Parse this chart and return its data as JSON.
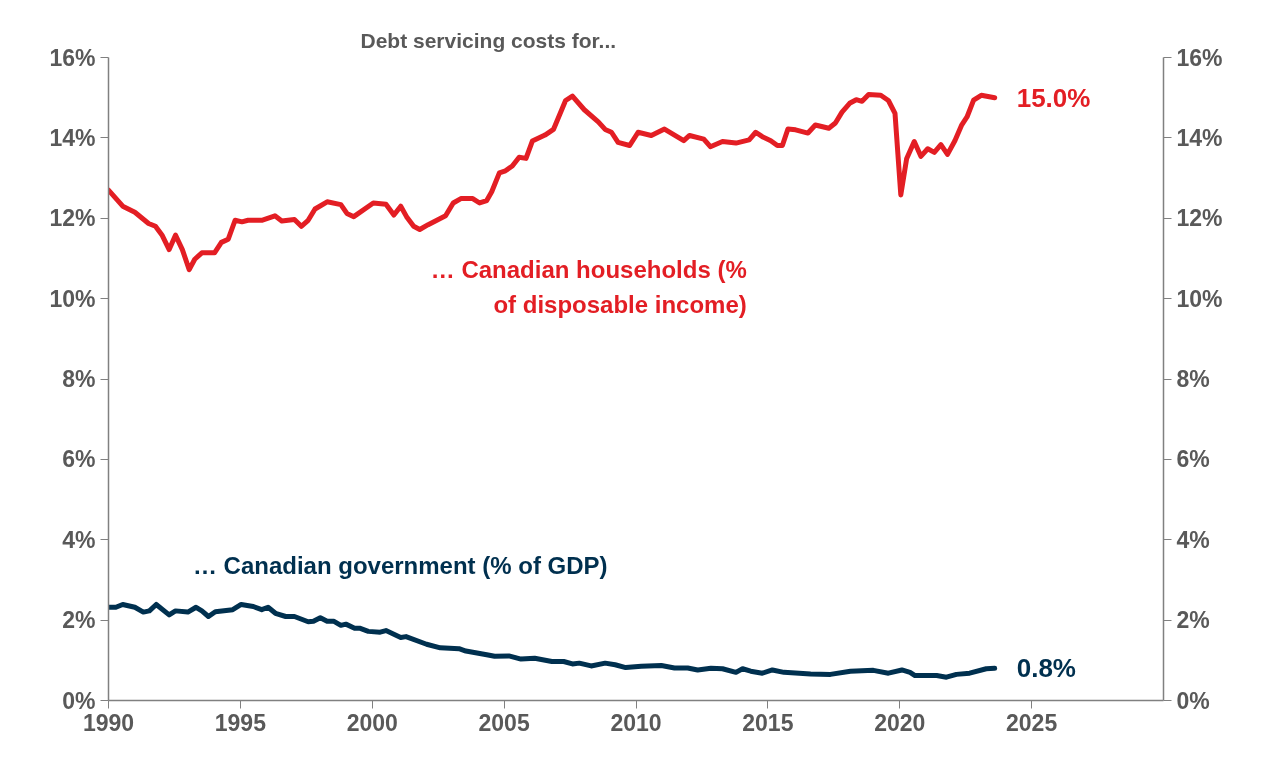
{
  "chart_data": {
    "type": "line",
    "title": "Debt servicing costs for...",
    "xlim": [
      1990,
      2030
    ],
    "xticks": [
      1990,
      1995,
      2000,
      2005,
      2010,
      2015,
      2020,
      2025
    ],
    "ylim": [
      0,
      16
    ],
    "yticks": [
      {
        "value": 0,
        "label": "0%"
      },
      {
        "value": 2,
        "label": "2%"
      },
      {
        "value": 4,
        "label": "4%"
      },
      {
        "value": 6,
        "label": "6%"
      },
      {
        "value": 8,
        "label": "8%"
      },
      {
        "value": 10,
        "label": "10%"
      },
      {
        "value": 12,
        "label": "12%"
      },
      {
        "value": 14,
        "label": "14%"
      },
      {
        "value": 16,
        "label": "16%"
      }
    ],
    "y2lim": [
      0,
      16
    ],
    "y2ticks": [
      {
        "value": 0,
        "label": "0%"
      },
      {
        "value": 2,
        "label": "2%"
      },
      {
        "value": 4,
        "label": "4%"
      },
      {
        "value": 6,
        "label": "6%"
      },
      {
        "value": 8,
        "label": "8%"
      },
      {
        "value": 10,
        "label": "10%"
      },
      {
        "value": 12,
        "label": "12%"
      },
      {
        "value": 14,
        "label": "14%"
      },
      {
        "value": 16,
        "label": "16%"
      }
    ],
    "grid": false,
    "marker": "none",
    "line_style": "solid",
    "series": [
      {
        "name": "… Canadian households (%\nof disposable income)",
        "color": "#e31e24",
        "x": [
          1990.0,
          1990.54,
          1991.0,
          1991.52,
          1991.78,
          1992.04,
          1992.3,
          1992.54,
          1992.8,
          1993.06,
          1993.27,
          1993.54,
          1994.02,
          1994.28,
          1994.54,
          1994.8,
          1995.06,
          1995.29,
          1995.81,
          1996.31,
          1996.57,
          1997.05,
          1997.31,
          1997.57,
          1997.83,
          1998.29,
          1998.81,
          1999.04,
          1999.3,
          2000.04,
          2000.52,
          2000.82,
          2001.08,
          2001.3,
          2001.57,
          2001.8,
          2002.12,
          2002.78,
          2003.07,
          2003.36,
          2003.81,
          2004.07,
          2004.34,
          2004.53,
          2004.82,
          2005.05,
          2005.31,
          2005.57,
          2005.83,
          2006.07,
          2006.55,
          2006.87,
          2007.33,
          2007.59,
          2008.04,
          2008.57,
          2008.83,
          2009.07,
          2009.32,
          2009.76,
          2010.08,
          2010.58,
          2011.08,
          2011.81,
          2012.03,
          2012.57,
          2012.82,
          2013.28,
          2013.79,
          2014.29,
          2014.54,
          2014.79,
          2015.11,
          2015.36,
          2015.55,
          2015.76,
          2016.05,
          2016.52,
          2016.8,
          2017.31,
          2017.56,
          2017.81,
          2018.1,
          2018.35,
          2018.57,
          2018.82,
          2019.28,
          2019.57,
          2019.82,
          2020.04,
          2020.26,
          2020.55,
          2020.8,
          2021.06,
          2021.31,
          2021.56,
          2021.81,
          2022.09,
          2022.34,
          2022.55,
          2022.8,
          2023.09,
          2023.6
        ],
        "values": [
          12.7,
          12.3,
          12.15,
          11.87,
          11.8,
          11.57,
          11.22,
          11.58,
          11.22,
          10.72,
          10.98,
          11.14,
          11.14,
          11.4,
          11.48,
          11.95,
          11.91,
          11.95,
          11.95,
          12.06,
          11.93,
          11.97,
          11.8,
          11.95,
          12.23,
          12.41,
          12.34,
          12.12,
          12.04,
          12.38,
          12.35,
          12.08,
          12.3,
          12.04,
          11.8,
          11.72,
          11.84,
          12.06,
          12.38,
          12.49,
          12.49,
          12.38,
          12.44,
          12.66,
          13.13,
          13.18,
          13.3,
          13.52,
          13.49,
          13.92,
          14.07,
          14.21,
          14.93,
          15.04,
          14.7,
          14.4,
          14.21,
          14.14,
          13.89,
          13.81,
          14.14,
          14.06,
          14.22,
          13.93,
          14.06,
          13.97,
          13.78,
          13.91,
          13.87,
          13.95,
          14.14,
          14.03,
          13.93,
          13.81,
          13.81,
          14.22,
          14.2,
          14.12,
          14.32,
          14.24,
          14.37,
          14.64,
          14.86,
          14.95,
          14.91,
          15.08,
          15.06,
          14.93,
          14.61,
          12.58,
          13.48,
          13.91,
          13.54,
          13.73,
          13.64,
          13.83,
          13.59,
          13.93,
          14.31,
          14.52,
          14.94,
          15.06,
          15.0
        ]
      },
      {
        "name": "… Canadian government (% of GDP)",
        "color": "#00304f",
        "x": [
          1990.0,
          1990.28,
          1990.54,
          1991.0,
          1991.32,
          1991.55,
          1991.81,
          1992.3,
          1992.54,
          1993.01,
          1993.32,
          1993.54,
          1993.79,
          1994.05,
          1994.71,
          1995.03,
          1995.49,
          1995.81,
          1996.05,
          1996.33,
          1996.72,
          1997.05,
          1997.57,
          1997.77,
          1998.03,
          1998.29,
          1998.55,
          1998.81,
          1999.0,
          1999.33,
          1999.52,
          1999.85,
          2000.3,
          2000.52,
          2001.08,
          2001.28,
          2002.06,
          2002.58,
          2003.29,
          2003.55,
          2004.34,
          2004.64,
          2005.18,
          2005.64,
          2006.16,
          2006.81,
          2007.26,
          2007.59,
          2007.85,
          2008.3,
          2008.83,
          2009.21,
          2009.61,
          2010.2,
          2010.96,
          2011.46,
          2011.96,
          2012.34,
          2012.84,
          2013.28,
          2013.79,
          2014.04,
          2014.35,
          2014.79,
          2015.17,
          2015.61,
          2016.62,
          2017.37,
          2018.13,
          2019.0,
          2019.57,
          2020.08,
          2020.39,
          2020.58,
          2021.4,
          2021.77,
          2022.15,
          2022.65,
          2023.28,
          2023.6
        ],
        "values": [
          2.32,
          2.32,
          2.39,
          2.32,
          2.2,
          2.23,
          2.39,
          2.13,
          2.23,
          2.2,
          2.32,
          2.23,
          2.09,
          2.21,
          2.26,
          2.39,
          2.34,
          2.26,
          2.32,
          2.17,
          2.09,
          2.09,
          1.96,
          1.97,
          2.06,
          1.97,
          1.97,
          1.87,
          1.9,
          1.8,
          1.8,
          1.72,
          1.7,
          1.74,
          1.57,
          1.59,
          1.4,
          1.31,
          1.29,
          1.23,
          1.14,
          1.1,
          1.11,
          1.03,
          1.05,
          0.97,
          0.97,
          0.91,
          0.93,
          0.86,
          0.93,
          0.89,
          0.82,
          0.85,
          0.87,
          0.81,
          0.81,
          0.76,
          0.8,
          0.79,
          0.7,
          0.79,
          0.73,
          0.68,
          0.76,
          0.7,
          0.66,
          0.65,
          0.73,
          0.75,
          0.68,
          0.76,
          0.7,
          0.62,
          0.62,
          0.58,
          0.65,
          0.68,
          0.79,
          0.8
        ]
      }
    ],
    "annotations": [
      {
        "text": "15.0%",
        "x": 2023.6,
        "y": 15.0
      },
      {
        "text": "0.8%",
        "x": 2023.6,
        "y": 0.8
      }
    ]
  }
}
